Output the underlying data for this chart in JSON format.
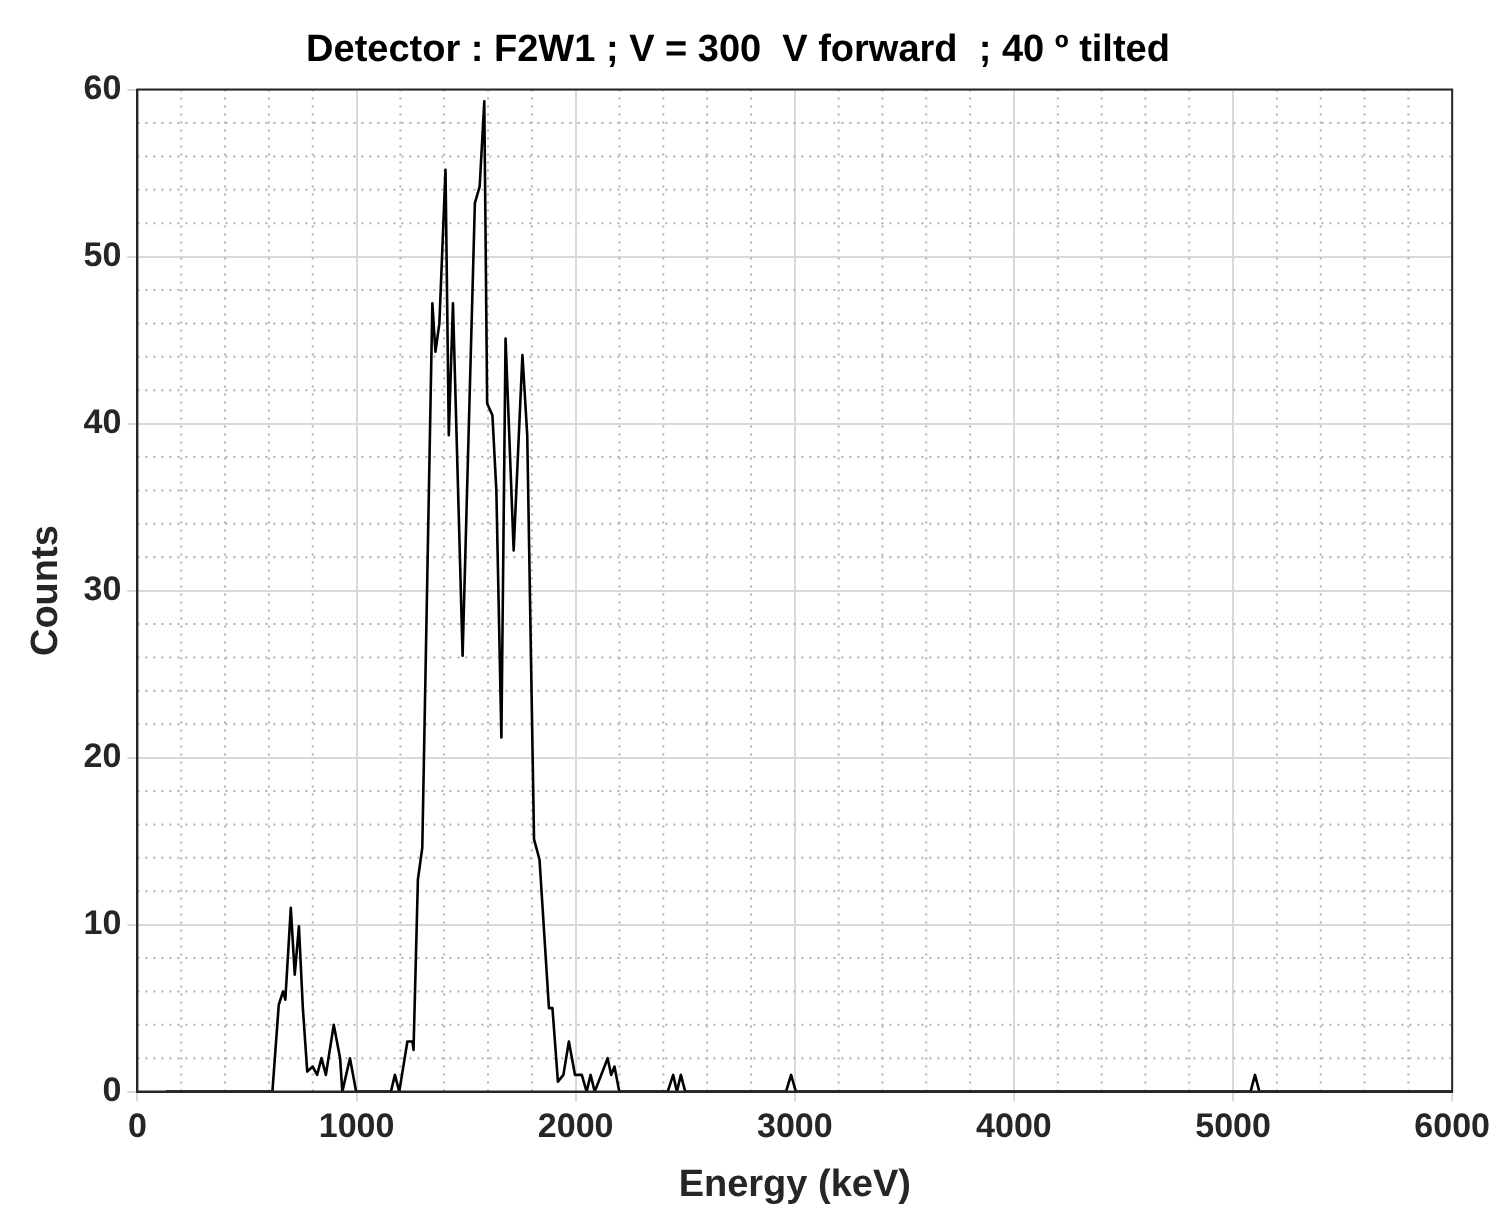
{
  "chart_data": {
    "type": "line",
    "title": "Detector : F2W1 ; V = 300  V forward  ; 40 º tilted",
    "xlabel": "Energy (keV)",
    "ylabel": "Counts",
    "series": [
      {
        "color": "#000000",
        "x": [
          130,
          616,
          645,
          665,
          675,
          700,
          718,
          737,
          755,
          775,
          800,
          820,
          840,
          860,
          896,
          925,
          935,
          970,
          998,
          1157,
          1175,
          1195,
          1232,
          1255,
          1260,
          1280,
          1300,
          1346,
          1360,
          1378,
          1406,
          1421,
          1440,
          1484,
          1540,
          1562,
          1583,
          1596,
          1620,
          1638,
          1661,
          1680,
          1717,
          1757,
          1779,
          1810,
          1835,
          1878,
          1894,
          1919,
          1944,
          1969,
          1997,
          2028,
          2050,
          2068,
          2087,
          2146,
          2162,
          2177,
          2199,
          2420,
          2445,
          2462,
          2480,
          2500,
          2960,
          2983,
          3005,
          5080,
          5100,
          5120,
          6000
        ],
        "values": [
          0,
          0,
          5.2,
          6,
          5.5,
          11,
          7,
          9.9,
          5,
          1.2,
          1.5,
          1,
          2,
          1,
          4,
          2,
          0,
          2,
          0,
          0,
          1,
          0,
          3,
          3,
          2.5,
          12.7,
          14.6,
          47.2,
          44.3,
          46,
          55.2,
          39.3,
          47.2,
          26.1,
          53.2,
          54.2,
          59.3,
          41.2,
          40.5,
          36,
          21.2,
          45.1,
          32.4,
          44.1,
          39.3,
          15.1,
          13.9,
          5,
          5,
          0.6,
          1,
          3,
          1,
          1,
          0,
          1,
          0,
          2,
          1,
          1.5,
          0,
          0,
          1,
          0,
          1,
          0,
          0,
          1,
          0,
          0,
          1,
          0,
          0
        ]
      }
    ],
    "xlim": [
      0,
      6000
    ],
    "xticks": [
      0,
      1000,
      2000,
      3000,
      4000,
      5000,
      6000
    ],
    "ylim": [
      0,
      60
    ],
    "yticks": [
      0,
      10,
      20,
      30,
      40,
      50,
      60
    ],
    "grid": true,
    "legend": false,
    "marker": "none",
    "line_style": "solid"
  }
}
